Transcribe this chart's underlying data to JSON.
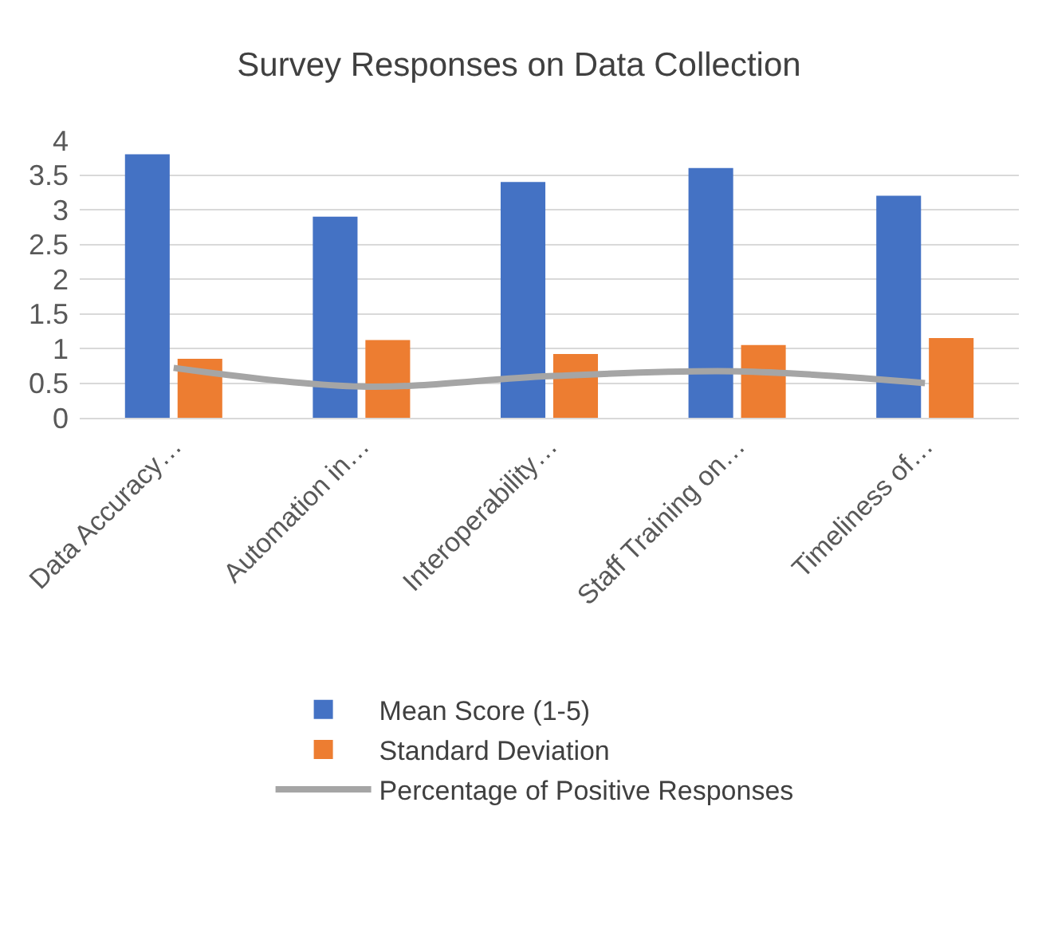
{
  "chart_data": {
    "type": "bar",
    "title": "Survey Responses on Data Collection",
    "categories": [
      "Data Accuracy…",
      "Automation in…",
      "Interoperability…",
      "Staff Training on…",
      "Timeliness of…"
    ],
    "series": [
      {
        "name": "Mean Score (1-5)",
        "color": "#4472c4",
        "values": [
          3.8,
          2.9,
          3.4,
          3.6,
          3.2
        ]
      },
      {
        "name": "Standard Deviation",
        "color": "#ed7d31",
        "values": [
          0.85,
          1.12,
          0.92,
          1.05,
          1.15
        ]
      },
      {
        "name": "Percentage of Positive Responses",
        "type": "line",
        "color": "#a5a5a5",
        "values": [
          0.72,
          0.45,
          0.6,
          0.67,
          0.5
        ]
      }
    ],
    "ylim": [
      0,
      4
    ],
    "yticks": [
      0,
      0.5,
      1,
      1.5,
      2,
      2.5,
      3,
      3.5,
      4
    ],
    "grid": "y",
    "legend": "bottom"
  }
}
